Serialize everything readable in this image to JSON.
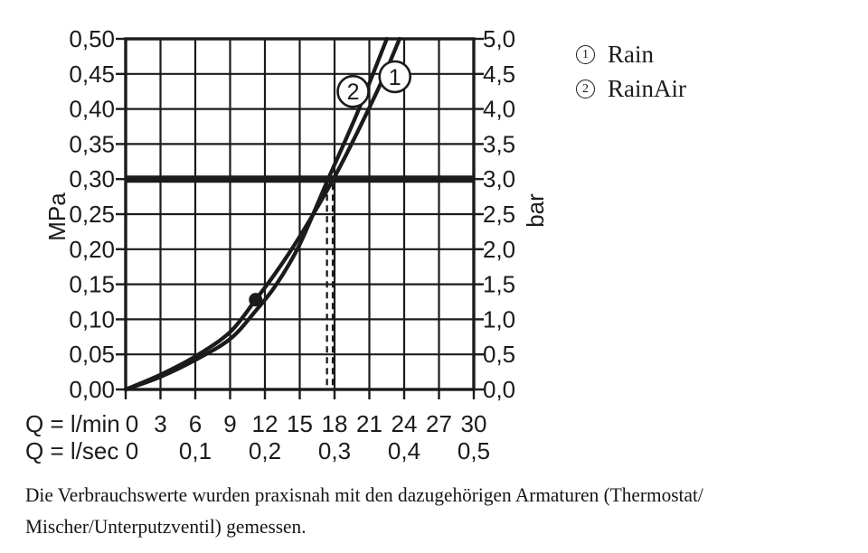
{
  "page": {
    "background": "#ffffff",
    "ink": "#1b1b1b"
  },
  "chart_data": {
    "type": "line",
    "title": "",
    "x_axis": {
      "range_lmin": [
        0,
        30
      ],
      "rows": [
        {
          "label": "Q = l/min",
          "ticks": [
            "0",
            "3",
            "6",
            "9",
            "12",
            "15",
            "18",
            "21",
            "24",
            "27",
            "30"
          ],
          "values_lmin": [
            0,
            3,
            6,
            9,
            12,
            15,
            18,
            21,
            24,
            27,
            30
          ]
        },
        {
          "label": "Q = l/sec",
          "ticks": [
            "0",
            "0,1",
            "0,2",
            "0,3",
            "0,4",
            "0,5"
          ],
          "values_lmin": [
            0,
            6,
            12,
            18,
            24,
            30
          ]
        }
      ]
    },
    "y_axis_left": {
      "label": "MPa",
      "range_mpa": [
        0,
        0.5
      ],
      "ticks": [
        "0,00",
        "0,05",
        "0,10",
        "0,15",
        "0,20",
        "0,25",
        "0,30",
        "0,35",
        "0,40",
        "0,45",
        "0,50"
      ],
      "values_mpa": [
        0,
        0.05,
        0.1,
        0.15,
        0.2,
        0.25,
        0.3,
        0.35,
        0.4,
        0.45,
        0.5
      ]
    },
    "y_axis_right": {
      "label": "bar",
      "ticks": [
        "0,0",
        "0,5",
        "1,0",
        "1,5",
        "2,0",
        "2,5",
        "3,0",
        "3,5",
        "4,0",
        "4,5",
        "5,0"
      ]
    },
    "grid": true,
    "legend_position": "top-right",
    "series": [
      {
        "id": "1",
        "name": "Rain",
        "points_lmin_mpa": [
          [
            0,
            0
          ],
          [
            3,
            0.021
          ],
          [
            6,
            0.047
          ],
          [
            9,
            0.082
          ],
          [
            11.2,
            0.128
          ],
          [
            13,
            0.168
          ],
          [
            15,
            0.218
          ],
          [
            17.9,
            0.3
          ],
          [
            20,
            0.368
          ],
          [
            22,
            0.437
          ],
          [
            23.6,
            0.5
          ]
        ],
        "callout": {
          "label": "1",
          "q_lmin": 23.2,
          "p_mpa": 0.446
        }
      },
      {
        "id": "2",
        "name": "RainAir",
        "points_lmin_mpa": [
          [
            0,
            0
          ],
          [
            3,
            0.018
          ],
          [
            6,
            0.042
          ],
          [
            9,
            0.072
          ],
          [
            11.2,
            0.112
          ],
          [
            13,
            0.15
          ],
          [
            15,
            0.207
          ],
          [
            17.45,
            0.3
          ],
          [
            20,
            0.396
          ],
          [
            22.5,
            0.5
          ]
        ],
        "callout": {
          "label": "2",
          "q_lmin": 19.6,
          "p_mpa": 0.425
        }
      }
    ],
    "reference_line_mpa": 0.3,
    "dashed_guides_lmin": [
      17.35,
      17.85
    ],
    "marker_point": {
      "series": "Rain",
      "q_lmin": 11.2,
      "p_mpa": 0.128
    }
  },
  "legend": {
    "items": [
      {
        "num": "1",
        "label": "Rain"
      },
      {
        "num": "2",
        "label": "RainAir"
      }
    ]
  },
  "caption": {
    "lines": [
      "Die Verbrauchswerte wurden praxisnah mit den dazugehörigen Armaturen (Thermostat/",
      "Mischer/Unterputzventil) gemessen."
    ]
  }
}
